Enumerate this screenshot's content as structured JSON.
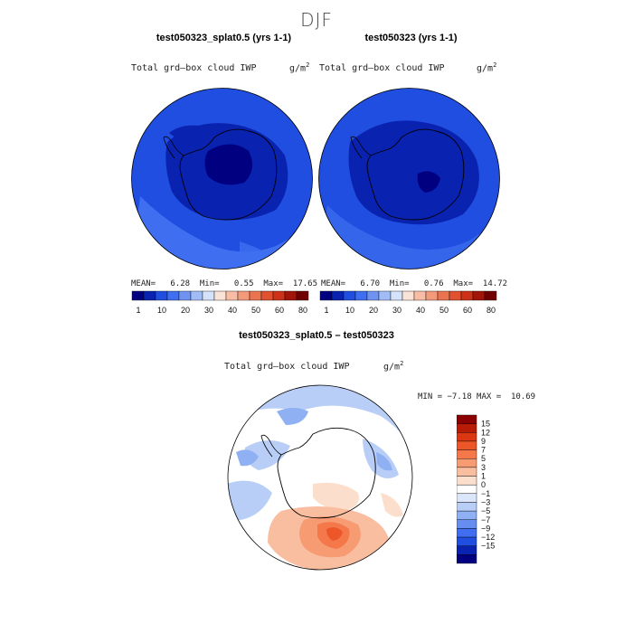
{
  "season": "DJF",
  "panels": [
    {
      "title": "test050323_splat0.5 (yrs 1-1)",
      "variable": "Total grd–box cloud IWP",
      "units": "g/m",
      "units_exp": "2",
      "mean_label": "MEAN=",
      "mean": "6.28",
      "min_label": "Min=",
      "min": "0.55",
      "max_label": "Max=",
      "max": "17.65"
    },
    {
      "title": "test050323 (yrs 1-1)",
      "variable": "Total grd–box cloud IWP",
      "units": "g/m",
      "units_exp": "2",
      "mean_label": "MEAN=",
      "mean": "6.70",
      "min_label": "Min=",
      "min": "0.76",
      "max_label": "Max=",
      "max": "14.72"
    }
  ],
  "colorbar_top": {
    "labels": [
      "1",
      "10",
      "20",
      "30",
      "40",
      "50",
      "60",
      "80"
    ],
    "colors": [
      "#000080",
      "#0a22b0",
      "#1f4ee0",
      "#3f6ff0",
      "#6f93f3",
      "#a2bdf6",
      "#d4e2fa",
      "#fbe2d6",
      "#f8bda4",
      "#f29a7a",
      "#ea7350",
      "#e0512f",
      "#cd3117",
      "#a11608",
      "#700000"
    ]
  },
  "diff_panel": {
    "title": "test050323_splat0.5 – test050323",
    "variable": "Total grd–box cloud IWP",
    "units": "g/m",
    "units_exp": "2",
    "min_label": "MIN =",
    "min": "−7.18",
    "max_label": "MAX =",
    "max": "10.69"
  },
  "colorbar_diff": {
    "labels": [
      "15",
      "12",
      "9",
      "7",
      "5",
      "3",
      "1",
      "0",
      "−1",
      "−3",
      "−5",
      "−7",
      "−9",
      "−12",
      "−15"
    ],
    "colors": [
      "#8b0000",
      "#b81b06",
      "#dc3713",
      "#ec5628",
      "#f4784a",
      "#f79b73",
      "#f9bea0",
      "#fbdfcc",
      "#ffffff",
      "#dbe6fa",
      "#b8cef7",
      "#8fb0f3",
      "#658ef0",
      "#3f6ff0",
      "#1f4ee0",
      "#0a22b0",
      "#000080"
    ]
  }
}
